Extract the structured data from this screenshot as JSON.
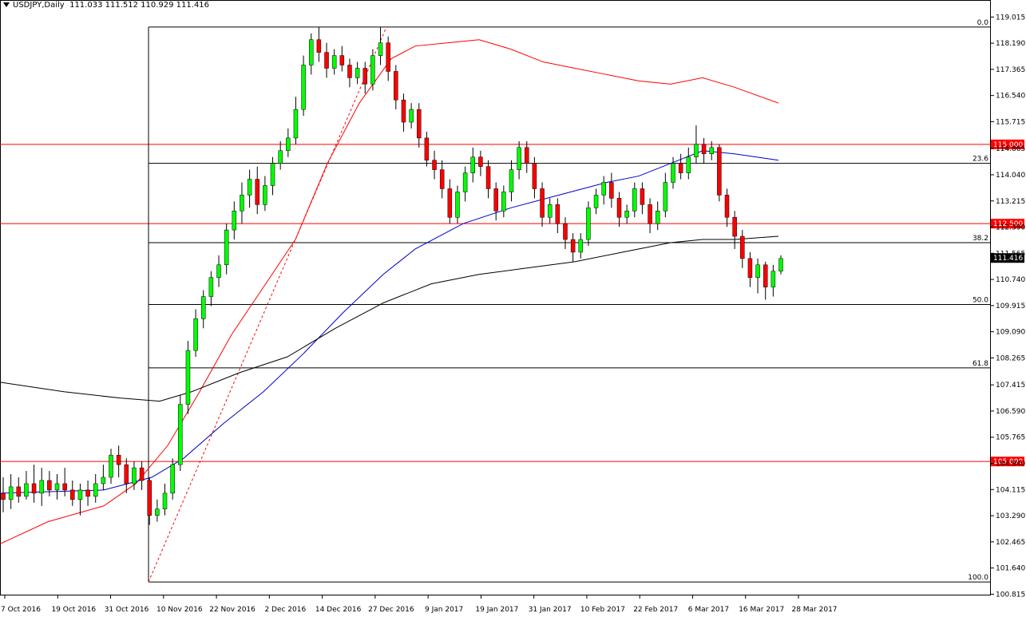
{
  "header": {
    "symbol": "USDJPY,Daily",
    "ohlc": "111.033 111.512 110.929 111.416"
  },
  "chart_data": {
    "type": "candlestick",
    "symbol": "USDJPY",
    "timeframe": "Daily",
    "ylim": [
      100.8,
      119.3
    ],
    "grid": false,
    "y_ticks": [
      "119.015",
      "118.190",
      "117.365",
      "116.540",
      "115.715",
      "114.865",
      "114.040",
      "113.215",
      "112.390",
      "111.565",
      "110.740",
      "109.915",
      "109.090",
      "108.265",
      "107.415",
      "106.590",
      "105.765",
      "104.940",
      "104.115",
      "103.290",
      "102.465",
      "101.640",
      "100.815"
    ],
    "x_ticks": [
      "7 Oct 2016",
      "19 Oct 2016",
      "31 Oct 2016",
      "10 Nov 2016",
      "22 Nov 2016",
      "2 Dec 2016",
      "14 Dec 2016",
      "27 Dec 2016",
      "9 Jan 2017",
      "19 Jan 2017",
      "31 Jan 2017",
      "10 Feb 2017",
      "22 Feb 2017",
      "6 Mar 2017",
      "16 Mar 2017",
      "28 Mar 2017"
    ],
    "current_price": "111.416",
    "horizontal_levels": [
      {
        "price": 115.0,
        "label": "115.000",
        "color": "#ff0000"
      },
      {
        "price": 112.5,
        "label": "112.500",
        "color": "#ff0000"
      },
      {
        "price": 105.0,
        "label": "105.000",
        "color": "#ff0000"
      }
    ],
    "fibonacci": {
      "color": "#000000",
      "line_color": "#ff0000",
      "levels": [
        {
          "label": "0.0",
          "price": 118.7
        },
        {
          "label": "23.6",
          "price": 114.4
        },
        {
          "label": "38.2",
          "price": 111.9
        },
        {
          "label": "50.0",
          "price": 109.95
        },
        {
          "label": "61.8",
          "price": 107.95
        },
        {
          "label": "100.0",
          "price": 101.2
        }
      ]
    },
    "series": [
      {
        "kind": "moving_average",
        "color": "#ff0000",
        "points": [
          [
            0,
            102.4
          ],
          [
            60,
            103.1
          ],
          [
            130,
            103.6
          ],
          [
            170,
            104.3
          ],
          [
            210,
            105.5
          ],
          [
            250,
            107.2
          ],
          [
            290,
            109.0
          ],
          [
            330,
            110.5
          ],
          [
            370,
            112.0
          ],
          [
            410,
            114.4
          ],
          [
            450,
            116.3
          ],
          [
            490,
            117.7
          ],
          [
            520,
            118.1
          ],
          [
            560,
            118.2
          ],
          [
            600,
            118.3
          ],
          [
            640,
            118.0
          ],
          [
            680,
            117.6
          ],
          [
            720,
            117.4
          ],
          [
            760,
            117.2
          ],
          [
            800,
            117.0
          ],
          [
            840,
            116.9
          ],
          [
            880,
            117.1
          ],
          [
            920,
            116.8
          ],
          [
            975,
            116.3
          ]
        ]
      },
      {
        "kind": "moving_average",
        "color": "#0000cc",
        "points": [
          [
            0,
            104.0
          ],
          [
            130,
            104.1
          ],
          [
            190,
            104.5
          ],
          [
            230,
            105.1
          ],
          [
            280,
            106.2
          ],
          [
            330,
            107.2
          ],
          [
            380,
            108.4
          ],
          [
            430,
            109.7
          ],
          [
            480,
            110.9
          ],
          [
            520,
            111.7
          ],
          [
            580,
            112.5
          ],
          [
            640,
            113.0
          ],
          [
            700,
            113.4
          ],
          [
            760,
            113.8
          ],
          [
            800,
            114.0
          ],
          [
            840,
            114.4
          ],
          [
            880,
            114.8
          ],
          [
            920,
            114.7
          ],
          [
            975,
            114.5
          ]
        ]
      },
      {
        "kind": "moving_average",
        "color": "#000000",
        "points": [
          [
            0,
            107.5
          ],
          [
            80,
            107.2
          ],
          [
            150,
            107.0
          ],
          [
            200,
            106.9
          ],
          [
            240,
            107.2
          ],
          [
            300,
            107.8
          ],
          [
            360,
            108.3
          ],
          [
            420,
            109.2
          ],
          [
            480,
            110.0
          ],
          [
            540,
            110.6
          ],
          [
            600,
            110.9
          ],
          [
            660,
            111.1
          ],
          [
            720,
            111.3
          ],
          [
            780,
            111.6
          ],
          [
            840,
            111.9
          ],
          [
            880,
            112.0
          ],
          [
            920,
            112.0
          ],
          [
            975,
            112.1
          ]
        ]
      }
    ],
    "candles": [
      [
        104.0,
        103.8,
        104.5,
        103.4
      ],
      [
        103.8,
        104.2,
        104.6,
        103.5
      ],
      [
        104.2,
        103.9,
        104.5,
        103.7
      ],
      [
        103.9,
        104.3,
        104.7,
        103.8
      ],
      [
        104.3,
        104.0,
        104.9,
        103.7
      ],
      [
        104.0,
        104.4,
        104.8,
        103.6
      ],
      [
        104.4,
        104.1,
        104.7,
        103.9
      ],
      [
        104.1,
        104.3,
        104.6,
        103.8
      ],
      [
        104.3,
        104.1,
        104.8,
        103.9
      ],
      [
        104.1,
        103.8,
        104.4,
        103.6
      ],
      [
        103.8,
        104.1,
        104.3,
        103.3
      ],
      [
        104.1,
        103.9,
        104.4,
        103.6
      ],
      [
        103.9,
        104.3,
        104.6,
        103.7
      ],
      [
        104.3,
        104.5,
        104.9,
        104.1
      ],
      [
        104.5,
        105.2,
        105.4,
        104.3
      ],
      [
        105.2,
        104.9,
        105.5,
        104.5
      ],
      [
        104.9,
        104.3,
        105.1,
        104.0
      ],
      [
        104.3,
        104.8,
        105.0,
        104.1
      ],
      [
        104.8,
        104.4,
        105.0,
        104.1
      ],
      [
        104.4,
        103.3,
        104.5,
        103.0
      ],
      [
        103.3,
        103.5,
        103.8,
        103.1
      ],
      [
        103.5,
        104.0,
        104.3,
        103.3
      ],
      [
        104.0,
        104.9,
        105.1,
        103.8
      ],
      [
        104.9,
        106.8,
        107.1,
        104.7
      ],
      [
        106.8,
        108.5,
        108.8,
        106.5
      ],
      [
        108.5,
        109.5,
        109.8,
        108.3
      ],
      [
        109.5,
        110.2,
        110.4,
        109.2
      ],
      [
        110.2,
        110.8,
        111.0,
        109.9
      ],
      [
        110.8,
        111.2,
        111.5,
        110.5
      ],
      [
        111.2,
        112.3,
        112.5,
        110.9
      ],
      [
        112.3,
        112.9,
        113.2,
        112.0
      ],
      [
        112.9,
        113.4,
        113.8,
        112.5
      ],
      [
        113.4,
        113.9,
        114.2,
        113.0
      ],
      [
        113.9,
        113.1,
        114.3,
        112.8
      ],
      [
        113.1,
        113.7,
        114.0,
        112.9
      ],
      [
        113.7,
        114.4,
        114.6,
        113.4
      ],
      [
        114.4,
        114.8,
        115.1,
        114.2
      ],
      [
        114.8,
        115.2,
        115.5,
        114.6
      ],
      [
        115.2,
        116.1,
        116.5,
        115.0
      ],
      [
        116.1,
        117.5,
        117.8,
        115.9
      ],
      [
        117.5,
        118.3,
        118.5,
        117.2
      ],
      [
        118.3,
        117.9,
        118.7,
        117.6
      ],
      [
        117.9,
        117.4,
        118.2,
        117.1
      ],
      [
        117.4,
        117.8,
        118.0,
        117.2
      ],
      [
        117.8,
        117.5,
        118.1,
        117.3
      ],
      [
        117.5,
        117.1,
        117.7,
        116.8
      ],
      [
        117.1,
        117.4,
        117.6,
        116.9
      ],
      [
        117.4,
        116.9,
        117.6,
        116.6
      ],
      [
        116.9,
        117.8,
        118.0,
        116.7
      ],
      [
        117.8,
        118.2,
        118.7,
        117.5
      ],
      [
        118.2,
        117.3,
        118.4,
        117.0
      ],
      [
        117.3,
        116.4,
        117.5,
        116.1
      ],
      [
        116.4,
        115.7,
        116.6,
        115.4
      ],
      [
        115.7,
        116.1,
        116.3,
        115.5
      ],
      [
        116.1,
        115.2,
        116.3,
        114.9
      ],
      [
        115.2,
        114.5,
        115.4,
        114.3
      ],
      [
        114.5,
        114.2,
        114.8,
        113.9
      ],
      [
        114.2,
        113.6,
        114.5,
        113.3
      ],
      [
        113.6,
        112.7,
        113.9,
        112.5
      ],
      [
        112.7,
        113.5,
        113.7,
        112.5
      ],
      [
        113.5,
        114.1,
        114.3,
        113.2
      ],
      [
        114.1,
        114.6,
        114.9,
        113.8
      ],
      [
        114.6,
        114.3,
        114.8,
        114.0
      ],
      [
        114.3,
        113.6,
        114.5,
        113.3
      ],
      [
        113.6,
        112.9,
        113.8,
        112.6
      ],
      [
        112.9,
        113.5,
        113.7,
        112.7
      ],
      [
        113.5,
        114.2,
        114.5,
        113.2
      ],
      [
        114.2,
        114.9,
        115.1,
        113.9
      ],
      [
        114.9,
        114.4,
        115.1,
        114.1
      ],
      [
        114.4,
        113.6,
        114.6,
        113.3
      ],
      [
        113.6,
        112.7,
        113.8,
        112.4
      ],
      [
        112.7,
        113.1,
        113.3,
        112.5
      ],
      [
        113.1,
        112.5,
        113.3,
        112.2
      ],
      [
        112.5,
        112.0,
        112.7,
        111.7
      ],
      [
        112.0,
        111.6,
        112.2,
        111.3
      ],
      [
        111.6,
        112.0,
        112.2,
        111.4
      ],
      [
        112.0,
        113.0,
        113.2,
        111.8
      ],
      [
        113.0,
        113.4,
        113.6,
        112.8
      ],
      [
        113.4,
        113.8,
        114.0,
        113.1
      ],
      [
        113.8,
        113.3,
        114.1,
        113.0
      ],
      [
        113.3,
        112.7,
        113.5,
        112.4
      ],
      [
        112.7,
        112.9,
        113.1,
        112.5
      ],
      [
        112.9,
        113.6,
        113.8,
        112.7
      ],
      [
        113.6,
        113.1,
        113.8,
        112.8
      ],
      [
        113.1,
        112.5,
        113.3,
        112.2
      ],
      [
        112.5,
        112.9,
        113.2,
        112.3
      ],
      [
        112.9,
        113.8,
        114.1,
        112.7
      ],
      [
        113.8,
        114.4,
        114.6,
        113.6
      ],
      [
        114.4,
        114.1,
        114.7,
        113.9
      ],
      [
        114.1,
        114.6,
        114.9,
        113.9
      ],
      [
        114.6,
        115.0,
        115.6,
        114.4
      ],
      [
        115.0,
        114.7,
        115.2,
        114.4
      ],
      [
        114.7,
        114.9,
        115.1,
        114.5
      ],
      [
        114.9,
        113.4,
        115.0,
        113.2
      ],
      [
        113.4,
        112.7,
        113.6,
        112.4
      ],
      [
        112.7,
        112.1,
        112.9,
        111.7
      ],
      [
        112.1,
        111.4,
        112.3,
        111.1
      ],
      [
        111.4,
        110.8,
        111.6,
        110.5
      ],
      [
        110.8,
        111.2,
        111.4,
        110.3
      ],
      [
        111.2,
        110.5,
        111.3,
        110.1
      ],
      [
        110.5,
        111.0,
        111.2,
        110.2
      ],
      [
        111.0,
        111.4,
        111.5,
        110.9
      ]
    ]
  }
}
